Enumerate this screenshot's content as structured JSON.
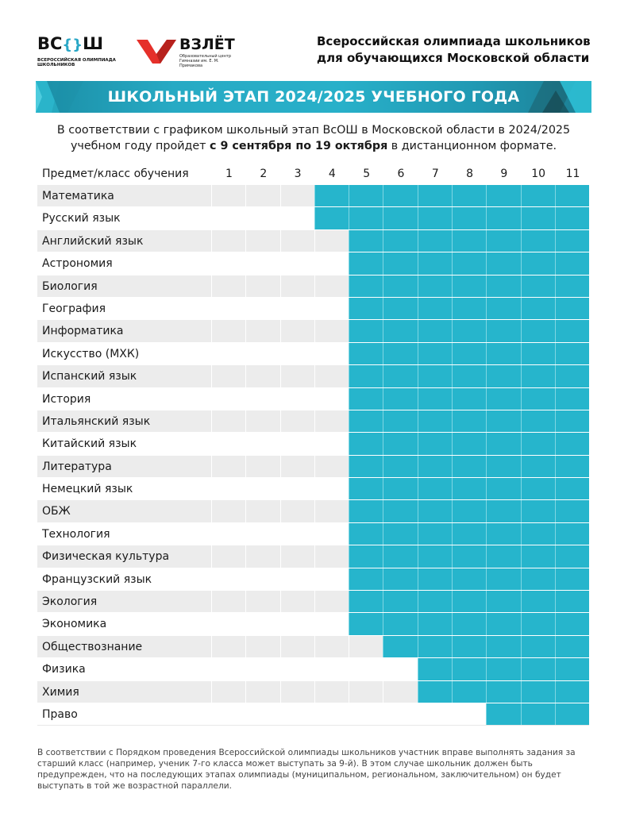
{
  "header": {
    "vsosh_logo": {
      "mark_left": "ВС",
      "mark_brace_open": "{",
      "mark_brace_close": "}",
      "mark_right": "Ш",
      "subtitle": "ВСЕРОССИЙСКАЯ ОЛИМПИАДА ШКОЛЬНИКОВ"
    },
    "vzlet_logo": {
      "name": "ВЗЛЁТ",
      "description": "Образовательный центр Гимназии им. Е. М. Примакова"
    },
    "title_line1": "Всероссийская олимпиада школьников",
    "title_line2": "для обучающихся Московской области"
  },
  "banner": {
    "title": "ШКОЛЬНЫЙ ЭТАП 2024/2025 УЧЕБНОГО ГОДА"
  },
  "intro": {
    "text_before": "В соответствии с графиком школьный этап ВсОШ в Московской области в 2024/2025 учебном году пройдет ",
    "text_bold": "с 9 сентября по 19 октября",
    "text_after": " в дистанционном формате."
  },
  "table": {
    "subject_header": "Предмет/класс обучения",
    "grades": [
      "1",
      "2",
      "3",
      "4",
      "5",
      "6",
      "7",
      "8",
      "9",
      "10",
      "11"
    ],
    "rows": [
      {
        "subject": "Математика",
        "from_grade": 4
      },
      {
        "subject": "Русский язык",
        "from_grade": 4
      },
      {
        "subject": "Английский язык",
        "from_grade": 5
      },
      {
        "subject": "Астрономия",
        "from_grade": 5
      },
      {
        "subject": "Биология",
        "from_grade": 5
      },
      {
        "subject": "География",
        "from_grade": 5
      },
      {
        "subject": "Информатика",
        "from_grade": 5
      },
      {
        "subject": "Искусство (МХК)",
        "from_grade": 5
      },
      {
        "subject": "Испанский язык",
        "from_grade": 5
      },
      {
        "subject": "История",
        "from_grade": 5
      },
      {
        "subject": "Итальянский язык",
        "from_grade": 5
      },
      {
        "subject": "Китайский язык",
        "from_grade": 5
      },
      {
        "subject": "Литература",
        "from_grade": 5
      },
      {
        "subject": "Немецкий язык",
        "from_grade": 5
      },
      {
        "subject": "ОБЖ",
        "from_grade": 5
      },
      {
        "subject": "Технология",
        "from_grade": 5
      },
      {
        "subject": "Физическая культура",
        "from_grade": 5
      },
      {
        "subject": "Французский язык",
        "from_grade": 5
      },
      {
        "subject": "Экология",
        "from_grade": 5
      },
      {
        "subject": "Экономика",
        "from_grade": 5
      },
      {
        "subject": "Обществознание",
        "from_grade": 6
      },
      {
        "subject": "Физика",
        "from_grade": 7
      },
      {
        "subject": "Химия",
        "from_grade": 7
      },
      {
        "subject": "Право",
        "from_grade": 9
      }
    ]
  },
  "footnote": "В соответствии с Порядком проведения Всероссийской олимпиады школьников участник вправе выполнять задания за старший класс (например, ученик 7-го класса может выступать за 9-й). В этом случае школьник должен быть предупрежден, что на последующих этапах олимпиады (муниципальном, региональном, заключительном) он будет выступать в той же возрастной параллели.",
  "colors": {
    "accent": "#26b5cc",
    "banner_dark": "#1c7d92",
    "row_gray": "#ececec",
    "vzlet_red": "#e5302a"
  }
}
